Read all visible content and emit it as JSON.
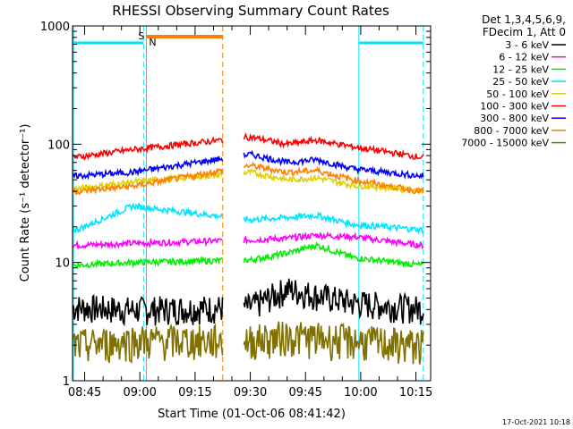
{
  "chart_data": {
    "type": "line",
    "title": "RHESSI Observing Summary Count Rates",
    "xlabel": "Start Time (01-Oct-06 08:41:42)",
    "ylabel": "Count Rate (s⁻¹ detector⁻¹)",
    "y_scale": "log",
    "ylim": [
      1,
      1000
    ],
    "xlim": [
      "08:41:42",
      "10:19:00"
    ],
    "x_tick_labels": [
      "08:45",
      "09:00",
      "09:15",
      "09:30",
      "09:45",
      "10:00",
      "10:15"
    ],
    "y_tick_labels": [
      "1",
      "10",
      "100",
      "1000"
    ],
    "legend_header": [
      "Det 1,3,4,5,6,9,",
      "FDecim 1, Att 0"
    ],
    "grid": false,
    "legend_placement": "right-outside",
    "data_gap": [
      "09:22:30",
      "09:28:15"
    ],
    "night_intervals": [
      [
        "08:41:42",
        "09:01:00"
      ],
      [
        "09:59:30",
        "10:17:00"
      ]
    ],
    "night_marker_colors": {
      "line": "#00e5ff",
      "dash": "#00e5ff"
    },
    "saa_interval": [
      "09:01:45",
      "09:22:30"
    ],
    "saa_color": "#ff7f00",
    "flag_labels": {
      "S": "S",
      "N": "N"
    },
    "series": [
      {
        "name": "3 - 6 keV",
        "color": "#000000",
        "values": [
          4.2,
          4.0,
          4.2,
          6.0,
          5.3,
          4.6,
          4.1
        ]
      },
      {
        "name": "6 - 12 keV",
        "color": "#ff00ff",
        "values": [
          14,
          14.5,
          15.5,
          16,
          17,
          16.5,
          14
        ]
      },
      {
        "name": "12 - 25 keV",
        "color": "#00ee00",
        "values": [
          9.5,
          10,
          10.5,
          12,
          14,
          11,
          9.5
        ]
      },
      {
        "name": "25 - 50 keV",
        "color": "#00e5ff",
        "values": [
          19,
          30,
          23,
          24,
          25,
          21,
          19
        ]
      },
      {
        "name": "50 - 100 keV",
        "color": "#e0d000",
        "values": [
          42,
          48,
          58,
          50,
          52,
          45,
          41
        ]
      },
      {
        "name": "100 - 300 keV",
        "color": "#ff0000",
        "values": [
          78,
          90,
          115,
          100,
          108,
          95,
          78
        ]
      },
      {
        "name": "300 - 800 keV",
        "color": "#0000ff",
        "values": [
          54,
          58,
          82,
          70,
          74,
          62,
          54
        ]
      },
      {
        "name": "800 - 7000 keV",
        "color": "#ff7f00",
        "values": [
          40,
          44,
          66,
          58,
          60,
          50,
          40
        ]
      },
      {
        "name": "7000 - 15000 keV",
        "color": "#807000",
        "values": [
          2,
          2.2,
          2.2,
          2.4,
          2.3,
          2.2,
          2.0
        ]
      }
    ],
    "series_x": [
      "08:43",
      "08:58",
      "09:30",
      "09:40",
      "09:48",
      "09:58",
      "10:16"
    ]
  },
  "footer_timestamp": "17-Oct-2021 10:18"
}
